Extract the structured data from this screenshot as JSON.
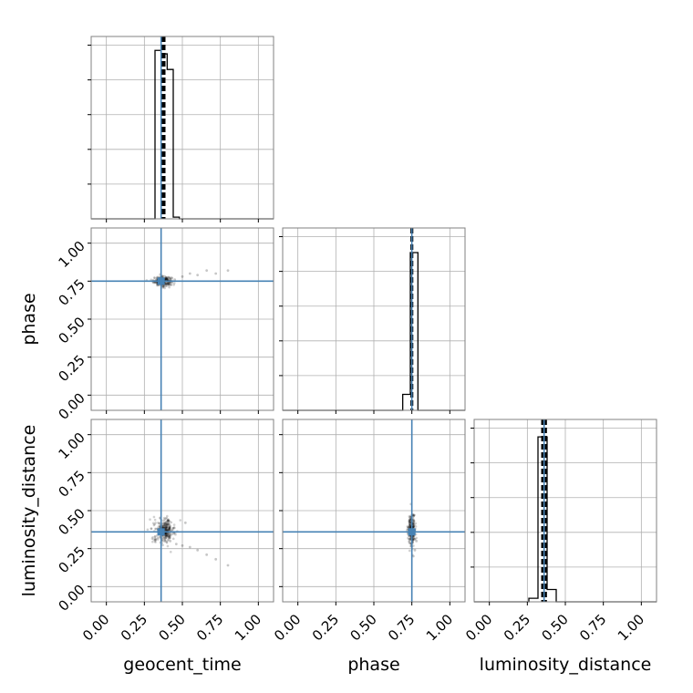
{
  "chart_data": {
    "type": "corner",
    "parameters": [
      "geocent_time",
      "phase",
      "luminosity_distance"
    ],
    "axis_range": [
      -0.1,
      1.1
    ],
    "tick_values": [
      0.0,
      0.25,
      0.5,
      0.75,
      1.0
    ],
    "tick_labels": [
      "0.00",
      "0.25",
      "0.50",
      "0.75",
      "1.00"
    ],
    "truths": [
      0.36,
      0.75,
      0.36
    ],
    "quantile_lines": [
      [
        0.37,
        0.38
      ],
      [
        0.75,
        0.75
      ],
      [
        0.35,
        0.37
      ]
    ],
    "grid": true,
    "colors": {
      "truth": "#4682b4",
      "hist": "#000000",
      "frame": "#808080",
      "grid": "#b0b0b0"
    },
    "histograms": [
      {
        "parameter": "geocent_time",
        "edges": [
          0.32,
          0.36,
          0.4,
          0.44,
          0.48
        ],
        "counts": [
          0.97,
          0.95,
          0.86,
          0.01
        ],
        "ymax": 1.0
      },
      {
        "parameter": "phase",
        "edges": [
          0.69,
          0.74,
          0.79
        ],
        "counts": [
          0.09,
          0.89
        ],
        "ymax": 0.98
      },
      {
        "parameter": "luminosity_distance",
        "edges": [
          0.26,
          0.32,
          0.38,
          0.44
        ],
        "counts": [
          0.02,
          0.94,
          0.07
        ],
        "ymax": 0.99
      }
    ],
    "scatter": [
      {
        "x_param": "geocent_time",
        "y_param": "phase",
        "clusters": [
          {
            "x": 0.37,
            "y": 0.75,
            "sx": 0.03,
            "sy": 0.015
          }
        ],
        "tail": [
          [
            0.45,
            0.76
          ],
          [
            0.5,
            0.78
          ],
          [
            0.55,
            0.8
          ],
          [
            0.6,
            0.79
          ],
          [
            0.66,
            0.82
          ],
          [
            0.72,
            0.8
          ],
          [
            0.8,
            0.82
          ]
        ]
      },
      {
        "x_param": "geocent_time",
        "y_param": "luminosity_distance",
        "clusters": [
          {
            "x": 0.38,
            "y": 0.37,
            "sx": 0.035,
            "sy": 0.04
          }
        ],
        "tail": [
          [
            0.42,
            0.3
          ],
          [
            0.46,
            0.28
          ],
          [
            0.5,
            0.27
          ],
          [
            0.55,
            0.26
          ],
          [
            0.6,
            0.24
          ],
          [
            0.66,
            0.21
          ],
          [
            0.72,
            0.18
          ],
          [
            0.8,
            0.14
          ],
          [
            0.52,
            0.42
          ]
        ]
      },
      {
        "x_param": "phase",
        "y_param": "luminosity_distance",
        "clusters": [
          {
            "x": 0.75,
            "y": 0.37,
            "sx": 0.012,
            "sy": 0.05
          }
        ],
        "tail": [
          [
            0.76,
            0.47
          ],
          [
            0.77,
            0.24
          ],
          [
            0.78,
            0.3
          ],
          [
            0.76,
            0.2
          ]
        ]
      }
    ]
  }
}
